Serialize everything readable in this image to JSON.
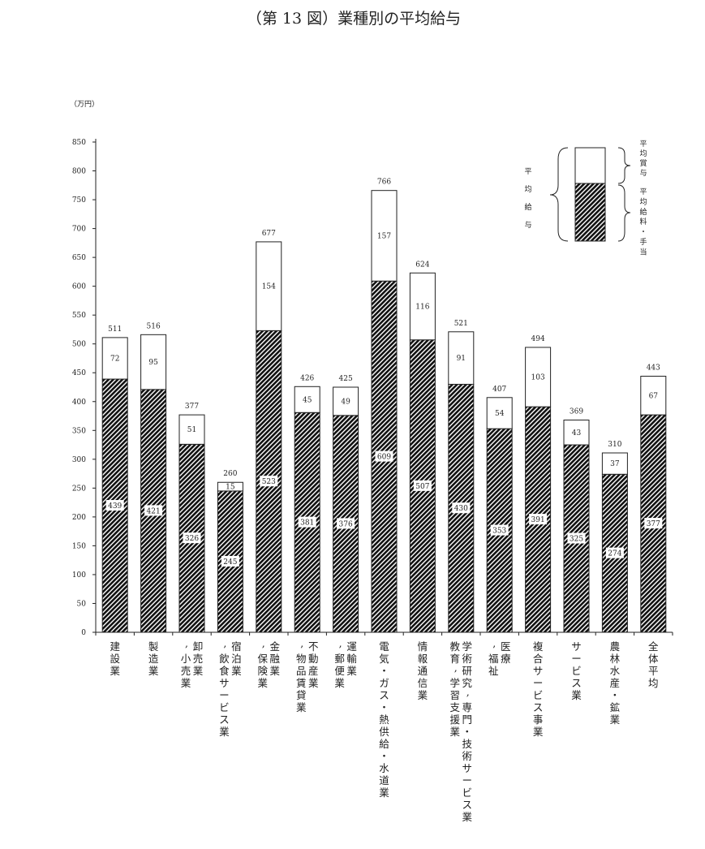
{
  "chart_data": {
    "type": "bar",
    "stacked": true,
    "title": "（第 13 図）業種別の平均給与",
    "ylabel": "（万円）",
    "ylim": [
      0,
      850
    ],
    "yticks": [
      0,
      50,
      100,
      150,
      200,
      250,
      300,
      350,
      400,
      450,
      500,
      550,
      600,
      650,
      700,
      750,
      800,
      850
    ],
    "categories": [
      [
        "建設業"
      ],
      [
        "製造業"
      ],
      [
        "卸売業",
        "，小売業"
      ],
      [
        "宿泊業",
        "，飲食サービス業"
      ],
      [
        "金融業",
        "，保険業"
      ],
      [
        "不動産業",
        "，物品賃貸業"
      ],
      [
        "運輸業",
        "，郵便業"
      ],
      [
        "電気・ガス・熱供給・水道業"
      ],
      [
        "情報通信業"
      ],
      [
        "学術研究，専門・技術サービス業",
        "教育，学習支援業"
      ],
      [
        "医療",
        "，福祉"
      ],
      [
        "複合サービス事業"
      ],
      [
        "サービス業"
      ],
      [
        "農林水産・鉱業"
      ],
      [
        "全体平均"
      ]
    ],
    "series": [
      {
        "name": "平均給料・手当",
        "pattern": "hatched",
        "values": [
          439,
          421,
          326,
          245,
          523,
          381,
          376,
          609,
          507,
          430,
          353,
          391,
          325,
          274,
          377
        ]
      },
      {
        "name": "平均賞与",
        "pattern": "white",
        "values": [
          72,
          95,
          51,
          15,
          154,
          45,
          49,
          157,
          116,
          91,
          54,
          103,
          43,
          37,
          67
        ]
      }
    ],
    "totals": [
      511,
      516,
      377,
      260,
      677,
      426,
      425,
      766,
      624,
      521,
      407,
      494,
      369,
      310,
      443
    ],
    "legend": {
      "placement": "top-right",
      "total_label": "平均給与",
      "top_label": "平均賞与",
      "bottom_label": "平均給料・手当"
    },
    "grid": false
  }
}
